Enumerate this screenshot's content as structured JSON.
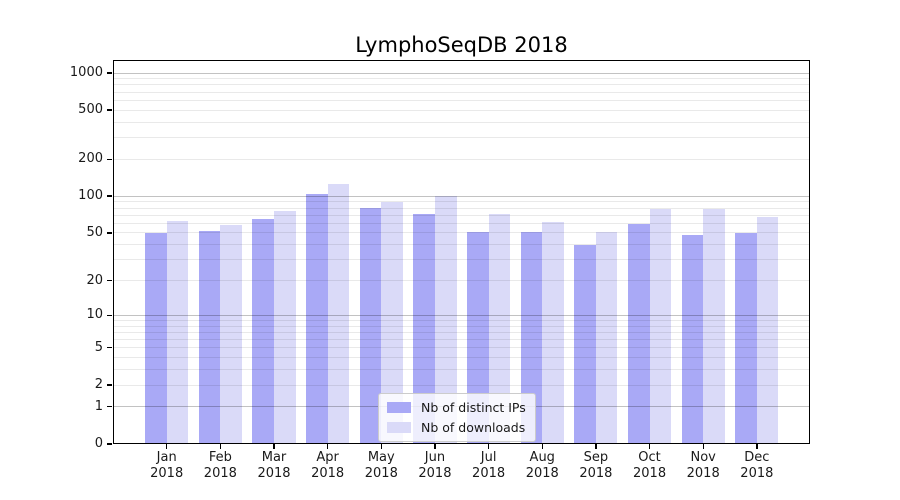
{
  "chart_data": {
    "type": "bar",
    "title": "LymphoSeqDB 2018",
    "year_label": "2018",
    "categories": [
      "Jan",
      "Feb",
      "Mar",
      "Apr",
      "May",
      "Jun",
      "Jul",
      "Aug",
      "Sep",
      "Oct",
      "Nov",
      "Dec"
    ],
    "series": [
      {
        "name": "Nb of distinct IPs",
        "color": "#a9a9f6",
        "values": [
          50,
          52,
          65,
          105,
          80,
          71,
          51,
          51,
          40,
          59,
          48,
          50
        ]
      },
      {
        "name": "Nb of downloads",
        "color": "#dadaf8",
        "values": [
          63,
          58,
          75,
          125,
          90,
          100,
          71,
          61,
          51,
          79,
          79,
          68
        ]
      }
    ],
    "xlabel": "",
    "ylabel": "",
    "y_ticks": [
      0,
      1,
      2,
      5,
      10,
      20,
      50,
      100,
      200,
      500,
      1000
    ],
    "y_scale": "log1p",
    "ylim": [
      0,
      1276
    ],
    "grid": "major and minor horizontal gridlines",
    "legend_position": "lower center",
    "grid_major_color": "#c2c2c2",
    "grid_minor_color": "#ebebeb",
    "axis_color": "#000000"
  }
}
